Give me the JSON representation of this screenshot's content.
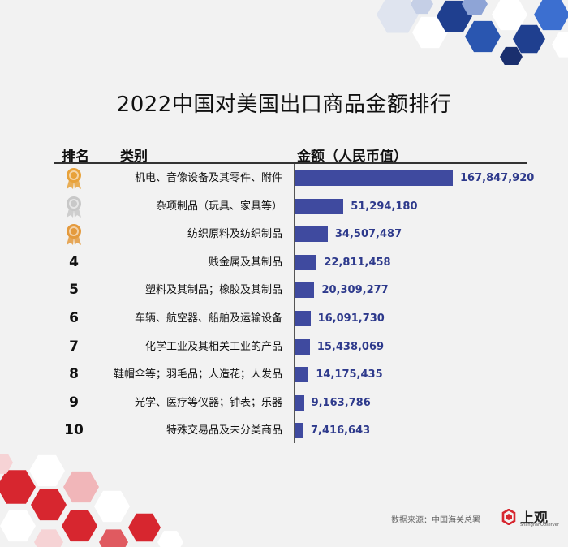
{
  "title": "2022中国对美国出口商品金额排行",
  "headers": {
    "rank": "排名",
    "category": "类别",
    "amount": "金额（人民币值）"
  },
  "colors": {
    "bar": "#3f4a9f",
    "value_text": "#2e3a8c",
    "gold": "#e8a23a",
    "silver": "#c8c8c8",
    "bronze": "#e49a3d",
    "deco_blue": "#1f3f8f",
    "deco_red": "#d7262f"
  },
  "chart_data": {
    "type": "bar",
    "orientation": "horizontal",
    "title": "2022中国对美国出口商品金额排行",
    "ylabel": "金额（人民币值）",
    "legend": "none",
    "grid": false,
    "xlim": [
      0,
      167847920
    ],
    "categories": [
      "机电、音像设备及其零件、附件",
      "杂项制品（玩具、家具等）",
      "纺织原料及纺织制品",
      "贱金属及其制品",
      "塑料及其制品；橡胶及其制品",
      "车辆、航空器、船舶及运输设备",
      "化学工业及其相关工业的产品",
      "鞋帽伞等；羽毛品；人造花；人发品",
      "光学、医疗等仪器；钟表；乐器",
      "特殊交易品及未分类商品"
    ],
    "ranks": [
      "1",
      "2",
      "3",
      "4",
      "5",
      "6",
      "7",
      "8",
      "9",
      "10"
    ],
    "rank_icons": [
      "gold-medal-icon",
      "silver-medal-icon",
      "bronze-medal-icon",
      null,
      null,
      null,
      null,
      null,
      null,
      null
    ],
    "values": [
      167847920,
      51294180,
      34507487,
      22811458,
      20309277,
      16091730,
      15438069,
      14175435,
      9163786,
      7416643
    ],
    "value_labels": [
      "167,847,920",
      "51,294,180",
      "34,507,487",
      "22,811,458",
      "20,309,277",
      "16,091,730",
      "15,438,069",
      "14,175,435",
      "9,163,786",
      "7,416,643"
    ]
  },
  "footer": {
    "source": "数据来源：中国海关总署",
    "logo_text": "上观",
    "logo_sub": "Shanghai Observer"
  }
}
